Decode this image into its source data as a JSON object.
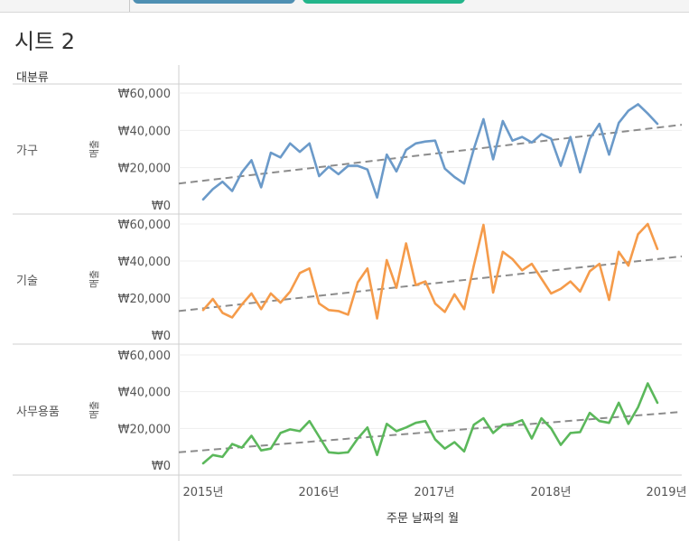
{
  "sheet": {
    "title": "시트 2",
    "row_header": "대분류",
    "bottom_axis_title": "주문 날짜의 월",
    "value_axis_title": "매출"
  },
  "chart_data": {
    "type": "line",
    "x_label": "주문 날짜의 월",
    "y_label": "매출",
    "x_ticks": [
      "2015년",
      "2016년",
      "2017년",
      "2018년",
      "2019년"
    ],
    "y_ticks": [
      "₩0",
      "₩20,000",
      "₩40,000",
      "₩60,000"
    ],
    "ylim": [
      0,
      60000
    ],
    "xlim": [
      "2015-01",
      "2018-12"
    ],
    "trend_lines": "dashed linear trend per panel",
    "x": [
      "2015-01",
      "2015-02",
      "2015-03",
      "2015-04",
      "2015-05",
      "2015-06",
      "2015-07",
      "2015-08",
      "2015-09",
      "2015-10",
      "2015-11",
      "2015-12",
      "2016-01",
      "2016-02",
      "2016-03",
      "2016-04",
      "2016-05",
      "2016-06",
      "2016-07",
      "2016-08",
      "2016-09",
      "2016-10",
      "2016-11",
      "2016-12",
      "2017-01",
      "2017-02",
      "2017-03",
      "2017-04",
      "2017-05",
      "2017-06",
      "2017-07",
      "2017-08",
      "2017-09",
      "2017-10",
      "2017-11",
      "2017-12",
      "2018-01",
      "2018-02",
      "2018-03",
      "2018-04",
      "2018-05",
      "2018-06",
      "2018-07",
      "2018-08",
      "2018-09",
      "2018-10",
      "2018-11",
      "2018-12"
    ],
    "series": [
      {
        "name": "가구",
        "color": "#6b9ac9",
        "trend": [
          11500,
          43000
        ],
        "values": [
          3000,
          8500,
          12500,
          7500,
          17500,
          24000,
          9500,
          28000,
          25500,
          33000,
          28500,
          33000,
          15500,
          20500,
          16500,
          21000,
          21000,
          19000,
          4000,
          27000,
          18000,
          29500,
          33000,
          34000,
          34500,
          19500,
          15000,
          11500,
          30000,
          46000,
          24500,
          45000,
          34500,
          36500,
          33500,
          38000,
          35500,
          21000,
          36500,
          17500,
          35500,
          43500,
          27000,
          44000,
          50500,
          54000,
          49000,
          43500
        ]
      },
      {
        "name": "기술",
        "color": "#f59b4a",
        "trend": [
          13000,
          42500
        ],
        "values": [
          13500,
          19500,
          12000,
          9500,
          16500,
          22500,
          14000,
          22500,
          17500,
          23500,
          33500,
          36000,
          17000,
          13500,
          13000,
          11000,
          28500,
          36000,
          9000,
          40500,
          25500,
          49500,
          27000,
          29000,
          17000,
          12500,
          22000,
          14000,
          37500,
          59500,
          23000,
          45000,
          41000,
          35000,
          38500,
          30500,
          22500,
          25000,
          29000,
          23500,
          34500,
          38500,
          19000,
          45000,
          37500,
          54500,
          60000,
          46500
        ]
      },
      {
        "name": "사무용품",
        "color": "#5bb85b",
        "trend": [
          7000,
          29000
        ],
        "values": [
          1000,
          5500,
          4500,
          11500,
          9500,
          16000,
          8000,
          9000,
          17500,
          19500,
          18500,
          24000,
          15500,
          7000,
          6500,
          7000,
          14500,
          20500,
          5500,
          22500,
          18500,
          20500,
          23000,
          24000,
          14000,
          9000,
          12500,
          7500,
          22000,
          25500,
          17500,
          22000,
          22500,
          24500,
          14500,
          25500,
          20000,
          11000,
          17500,
          18000,
          28500,
          24000,
          23000,
          34000,
          22500,
          31500,
          44500,
          34000
        ]
      }
    ]
  }
}
